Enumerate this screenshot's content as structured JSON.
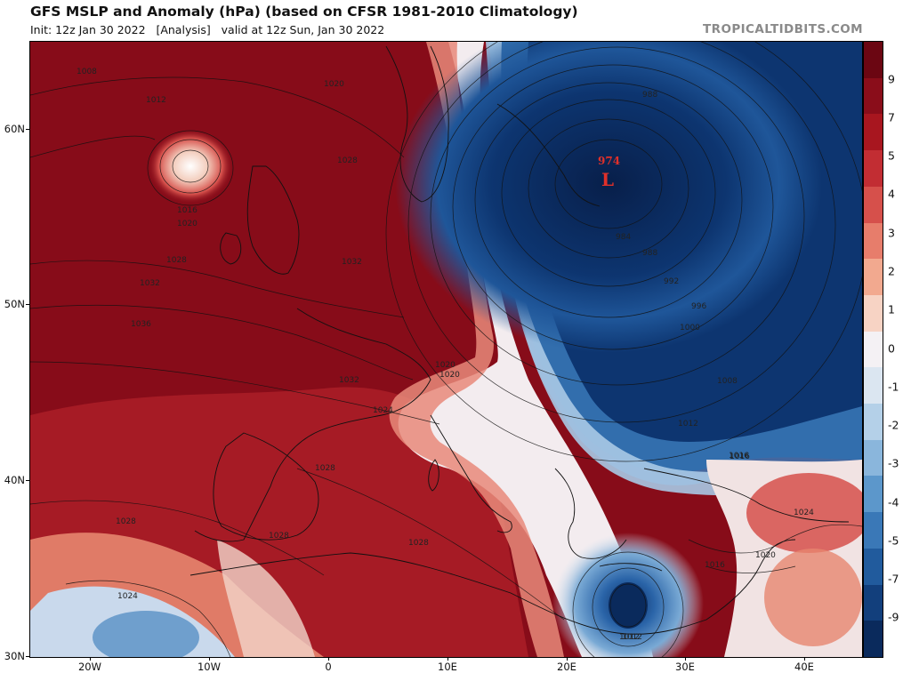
{
  "header": {
    "title": "GFS MSLP and Anomaly (hPa) (based on CFSR 1981-2010 Climatology)",
    "subtitle": "Init: 12z Jan 30 2022   [Analysis]   valid at 12z Sun, Jan 30 2022",
    "brand": "TROPICALTIDBITS.COM"
  },
  "map": {
    "region": "Europe / North Africa / Mediterranean",
    "latitude_labels": [
      "60N",
      "50N",
      "40N",
      "30N"
    ],
    "longitude_labels": [
      "20W",
      "10W",
      "0",
      "10E",
      "20E",
      "30E",
      "40E"
    ],
    "pressure_center": {
      "value": "974",
      "symbol": "L"
    },
    "isobar_labels": [
      "1008",
      "1012",
      "1016",
      "1020",
      "1020",
      "1024",
      "1028",
      "1032",
      "1036",
      "1032",
      "1032",
      "1024",
      "1020",
      "1020",
      "1028",
      "1028",
      "1028",
      "1028",
      "1024",
      "1016",
      "1012",
      "1012",
      "1016",
      "1024",
      "1020",
      "988",
      "988",
      "984",
      "992",
      "996",
      "1000",
      "1008",
      "1016",
      "1012"
    ],
    "colors": {
      "strong_positive": "#7c0a17",
      "positive": "#c8313a",
      "weak_positive": "#f0a58c",
      "neutral": "#f4f1f4",
      "weak_negative": "#9cc2e2",
      "negative": "#2f71b2",
      "strong_negative": "#0c2f66"
    }
  },
  "colorbar": {
    "labels": [
      "9",
      "7",
      "5",
      "4",
      "3",
      "2",
      "1",
      "0",
      "-1",
      "-2",
      "-3",
      "-4",
      "-5",
      "-7",
      "-9"
    ],
    "segment_colors": [
      "#6b0612",
      "#8a0d1a",
      "#a8161f",
      "#c22d33",
      "#d6504b",
      "#e77d6b",
      "#f2a98f",
      "#f7d3c4",
      "#f4f1f4",
      "#dbe6f1",
      "#b4d0e8",
      "#8ab6dc",
      "#5c97cb",
      "#3a78b7",
      "#215b9d",
      "#123f7c",
      "#0a2a5c"
    ]
  }
}
